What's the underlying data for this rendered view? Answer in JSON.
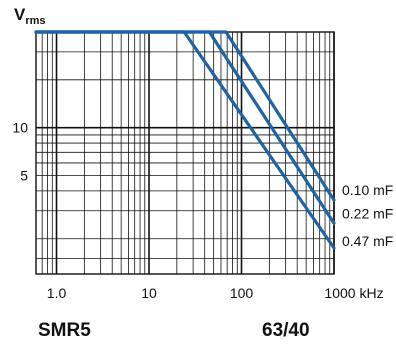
{
  "chart_data": {
    "type": "line",
    "title": "",
    "ylabel_main": "V",
    "ylabel_sub": "rms",
    "xlabel_unit": "kHz",
    "x_scale": "log",
    "y_scale": "log",
    "xlim": [
      0.6,
      1000
    ],
    "ylim": [
      1.2,
      40
    ],
    "x_ticks": [
      {
        "value": 1,
        "label": "1.0"
      },
      {
        "value": 10,
        "label": "10"
      },
      {
        "value": 100,
        "label": "100"
      },
      {
        "value": 1000,
        "label": "1000 kHz"
      }
    ],
    "y_ticks": [
      {
        "value": 5,
        "label": "5"
      },
      {
        "value": 10,
        "label": "10"
      }
    ],
    "grid": true,
    "series": [
      {
        "name": "0.10 mF",
        "x": [
          0.6,
          68,
          1000
        ],
        "y": [
          40,
          40,
          3.5
        ]
      },
      {
        "name": "0.22 mF",
        "x": [
          0.6,
          45,
          1000
        ],
        "y": [
          40,
          40,
          2.5
        ]
      },
      {
        "name": "0.47 mF",
        "x": [
          0.6,
          24,
          1000
        ],
        "y": [
          40,
          40,
          1.75
        ]
      }
    ]
  },
  "caption": {
    "model": "SMR5",
    "rating": "63/40"
  },
  "colors": {
    "curve": "#1f63a6",
    "grid": "#111111"
  }
}
